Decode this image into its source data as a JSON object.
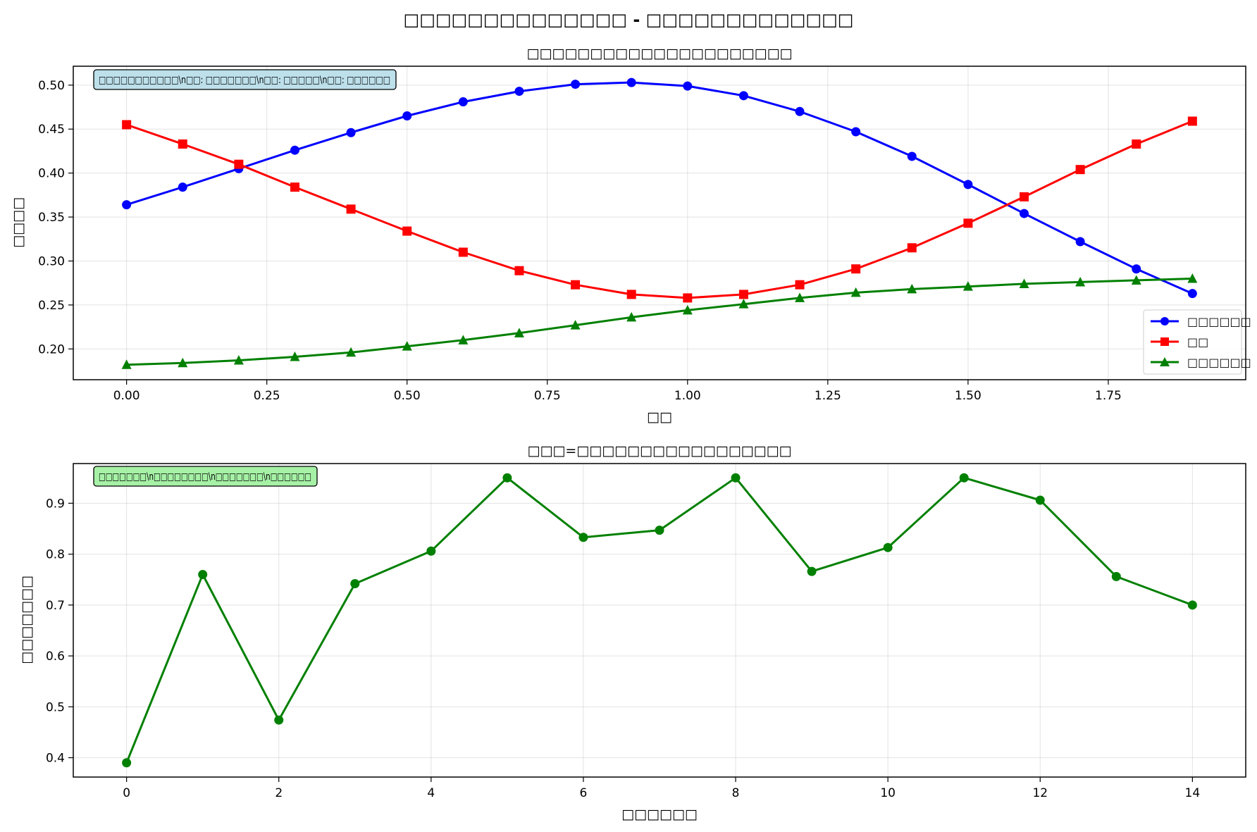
{
  "figure": {
    "suptitle": "□□□□□□□□□□□□□□ - □□□□□□□□□□□□□"
  },
  "chart_data": [
    {
      "type": "line",
      "title": "□□□□□□□□□□□□□□□□□□□□□",
      "xlabel": "□□",
      "ylabel": "□□□□",
      "xlim": [
        -0.095,
        1.995
      ],
      "ylim": [
        0.165,
        0.5215
      ],
      "grid": true,
      "xticks": [
        0.0,
        0.25,
        0.5,
        0.75,
        1.0,
        1.25,
        1.5,
        1.75
      ],
      "xtick_labels": [
        "0.00",
        "0.25",
        "0.50",
        "0.75",
        "1.00",
        "1.25",
        "1.50",
        "1.75"
      ],
      "yticks": [
        0.2,
        0.25,
        0.3,
        0.35,
        0.4,
        0.45,
        0.5
      ],
      "ytick_labels": [
        "0.20",
        "0.25",
        "0.30",
        "0.35",
        "0.40",
        "0.45",
        "0.50"
      ],
      "annotation": "□□□□□□□□□□□\\n□□: □□□□□□□\\n□□: □□□□□\\n□□: □□□□□□",
      "annotation_bg": "#add8e6",
      "legend_position": "lower right",
      "x": [
        0.0,
        0.1,
        0.2,
        0.3,
        0.4,
        0.5,
        0.6,
        0.7,
        0.8,
        0.9,
        1.0,
        1.1,
        1.2,
        1.3,
        1.4,
        1.5,
        1.6,
        1.7,
        1.8,
        1.9
      ],
      "series": [
        {
          "name": "□□□□□□",
          "color": "#0000ff",
          "marker": "circle",
          "values": [
            0.364,
            0.384,
            0.405,
            0.426,
            0.446,
            0.465,
            0.481,
            0.493,
            0.501,
            0.503,
            0.499,
            0.488,
            0.47,
            0.447,
            0.419,
            0.387,
            0.354,
            0.322,
            0.291,
            0.263
          ]
        },
        {
          "name": "□□",
          "color": "#ff0000",
          "marker": "square",
          "values": [
            0.455,
            0.433,
            0.41,
            0.384,
            0.359,
            0.334,
            0.31,
            0.289,
            0.273,
            0.262,
            0.258,
            0.262,
            0.273,
            0.291,
            0.315,
            0.343,
            0.373,
            0.404,
            0.433,
            0.459
          ]
        },
        {
          "name": "□□□□□□",
          "color": "#008000",
          "marker": "triangle",
          "values": [
            0.182,
            0.184,
            0.187,
            0.191,
            0.196,
            0.203,
            0.21,
            0.218,
            0.227,
            0.236,
            0.244,
            0.251,
            0.258,
            0.264,
            0.268,
            0.271,
            0.274,
            0.276,
            0.278,
            0.28
          ]
        }
      ]
    },
    {
      "type": "line",
      "title": "□□□=□□□□□□□□□□□□□□□□□",
      "xlabel": "□□□□□□",
      "ylabel": "□□□□□□□",
      "xlim": [
        -0.7,
        14.7
      ],
      "ylim": [
        0.362,
        0.978
      ],
      "grid": true,
      "xticks": [
        0,
        2,
        4,
        6,
        8,
        10,
        12,
        14
      ],
      "xtick_labels": [
        "0",
        "2",
        "4",
        "6",
        "8",
        "10",
        "12",
        "14"
      ],
      "yticks": [
        0.4,
        0.5,
        0.6,
        0.7,
        0.8,
        0.9
      ],
      "ytick_labels": [
        "0.4",
        "0.5",
        "0.6",
        "0.7",
        "0.8",
        "0.9"
      ],
      "annotation": "□□□□□□□\\n□□□□□□□□\\n□□□□□□□\\n□□□□□□",
      "annotation_bg": "#90ee90",
      "x": [
        0,
        1,
        2,
        3,
        4,
        5,
        6,
        7,
        8,
        9,
        10,
        11,
        12,
        13,
        14
      ],
      "series": [
        {
          "color": "#008000",
          "marker": "circle",
          "values": [
            0.39,
            0.76,
            0.474,
            0.742,
            0.806,
            0.95,
            0.833,
            0.847,
            0.95,
            0.766,
            0.813,
            0.95,
            0.906,
            0.756,
            0.7
          ]
        }
      ]
    }
  ]
}
